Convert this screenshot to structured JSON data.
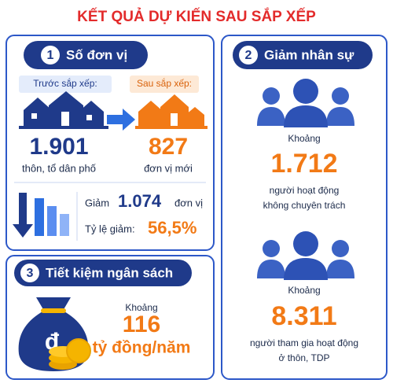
{
  "header": {
    "title": "KẾT QUẢ DỰ KIẾN SAU SẮP XẾP"
  },
  "section1": {
    "number": "1",
    "title": "Số đơn vị",
    "before": {
      "label": "Trước sắp xếp:",
      "value": "1.901",
      "unit": "thôn, tổ dân phố"
    },
    "after": {
      "label": "Sau sắp xếp:",
      "value": "827",
      "unit": "đơn vị mới"
    },
    "reduction": {
      "label": "Giảm",
      "value": "1.074",
      "unit": "đơn vị"
    },
    "rate": {
      "label": "Tỷ lệ giảm:",
      "value": "56,5%"
    }
  },
  "section2": {
    "number": "2",
    "title": "Giảm nhân sự",
    "items": [
      {
        "prefix": "Khoảng",
        "value": "1.712",
        "lines": [
          "người hoạt động",
          "không chuyên trách"
        ]
      },
      {
        "prefix": "Khoảng",
        "value": "8.311",
        "lines": [
          "người tham gia hoạt động",
          "ở thôn, TDP"
        ]
      }
    ]
  },
  "section3": {
    "number": "3",
    "title": "Tiết kiệm ngân sách",
    "currency_symbol": "đ",
    "prefix": "Khoảng",
    "value": "116",
    "unit": "tỷ đồng/năm"
  }
}
